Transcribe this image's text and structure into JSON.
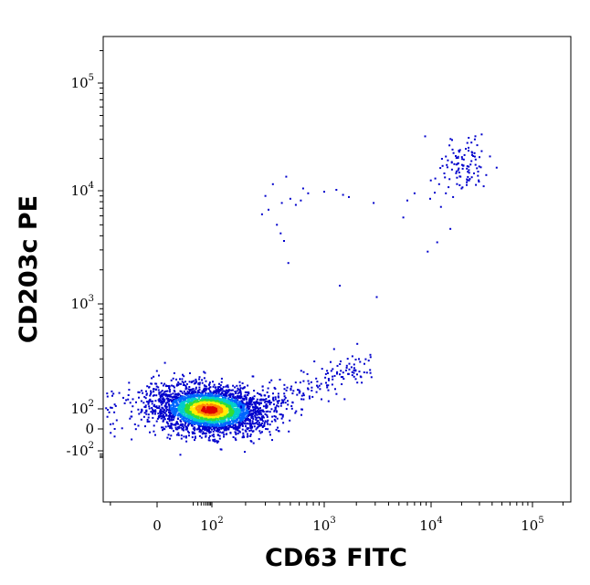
{
  "chart_data": {
    "type": "scatter",
    "subtype": "flow-cytometry-density-dotplot",
    "xlabel": "CD63 FITC",
    "ylabel": "CD203c PE",
    "x_scale": "biexponential",
    "y_scale": "biexponential",
    "xlim": [
      -300,
      250000
    ],
    "ylim": [
      -500,
      250000
    ],
    "x_ticks": [
      {
        "value": 0,
        "base": "0",
        "exp": ""
      },
      {
        "value": 100,
        "base": "10",
        "exp": "2"
      },
      {
        "value": 1000,
        "base": "10",
        "exp": "3"
      },
      {
        "value": 10000,
        "base": "10",
        "exp": "4"
      },
      {
        "value": 100000,
        "base": "10",
        "exp": "5"
      }
    ],
    "y_ticks": [
      {
        "value": -100,
        "base": "-10",
        "exp": "2"
      },
      {
        "value": 0,
        "base": "0",
        "exp": ""
      },
      {
        "value": 100,
        "base": "10",
        "exp": "2"
      },
      {
        "value": 1000,
        "base": "10",
        "exp": "3"
      },
      {
        "value": 10000,
        "base": "10",
        "exp": "4"
      },
      {
        "value": 100000,
        "base": "10",
        "exp": "5"
      }
    ],
    "grid": false,
    "density_colors": [
      "#0000cc",
      "#0066ff",
      "#00cccc",
      "#33dd33",
      "#ffee00",
      "#ff8800",
      "#dd0000"
    ],
    "populations": [
      {
        "center_x": 80,
        "center_y": 80,
        "spread": "large",
        "density": "high"
      },
      {
        "center_x": 20000,
        "center_y": 18000,
        "spread": "small",
        "density": "low"
      },
      {
        "center_x": 450,
        "center_y": 9000,
        "spread": "medium",
        "density": "sparse"
      }
    ],
    "series": [
      {
        "values": [
          [
            380,
            5000
          ],
          [
            420,
            7800
          ],
          [
            500,
            8500
          ],
          [
            350,
            11500
          ],
          [
            460,
            13500
          ],
          [
            650,
            10500
          ],
          [
            720,
            9500
          ],
          [
            300,
            9000
          ],
          [
            320,
            6800
          ],
          [
            410,
            4200
          ],
          [
            440,
            3600
          ],
          [
            480,
            2300
          ],
          [
            560,
            7500
          ],
          [
            620,
            8200
          ],
          [
            280,
            6200
          ],
          [
            1000,
            9800
          ],
          [
            1300,
            10200
          ],
          [
            1500,
            9200
          ],
          [
            1700,
            8800
          ],
          [
            2900,
            7800
          ],
          [
            5500,
            5800
          ],
          [
            6000,
            8200
          ],
          [
            7000,
            9500
          ],
          [
            1400,
            1450
          ],
          [
            3100,
            1150
          ],
          [
            1200,
            240
          ],
          [
            1800,
            250
          ],
          [
            8800,
            32000
          ],
          [
            9300,
            2900
          ],
          [
            11500,
            3500
          ],
          [
            12500,
            7200
          ],
          [
            15500,
            4600
          ],
          [
            9800,
            8500
          ],
          [
            12000,
            11500
          ],
          [
            13500,
            14500
          ],
          [
            14500,
            16500
          ],
          [
            16000,
            18500
          ],
          [
            17500,
            21000
          ],
          [
            18500,
            15500
          ],
          [
            19500,
            13500
          ],
          [
            21000,
            19500
          ],
          [
            22000,
            24500
          ],
          [
            23500,
            31000
          ],
          [
            24500,
            17500
          ],
          [
            25500,
            22500
          ],
          [
            26500,
            14500
          ],
          [
            27500,
            19500
          ],
          [
            28500,
            26500
          ],
          [
            29500,
            12500
          ],
          [
            31000,
            16500
          ],
          [
            33000,
            11000
          ],
          [
            35000,
            14000
          ],
          [
            14000,
            9500
          ],
          [
            16500,
            8800
          ],
          [
            20000,
            10500
          ],
          [
            22500,
            12000
          ],
          [
            25000,
            28000
          ],
          [
            27000,
            30000
          ],
          [
            12800,
            19800
          ],
          [
            15200,
            12800
          ],
          [
            18800,
            23500
          ],
          [
            17800,
            17500
          ],
          [
            20500,
            16000
          ],
          [
            23000,
            15000
          ],
          [
            26000,
            21000
          ],
          [
            30000,
            20500
          ],
          [
            13000,
            17000
          ],
          [
            11000,
            13000
          ]
        ]
      }
    ]
  }
}
